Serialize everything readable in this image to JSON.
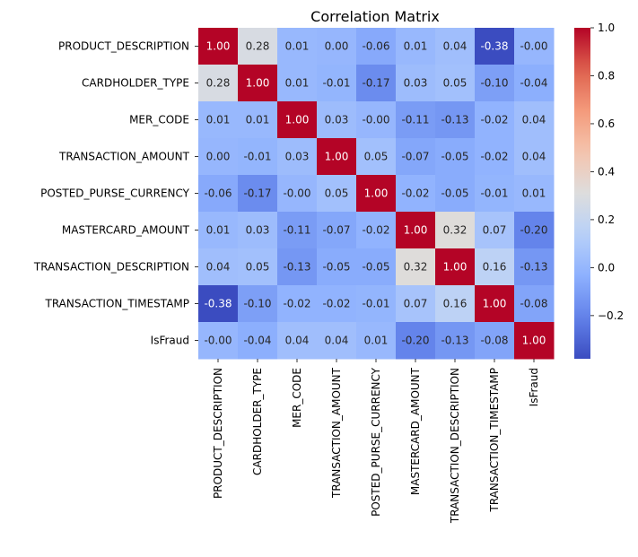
{
  "chart_data": {
    "type": "heatmap",
    "title": "Correlation Matrix",
    "xlabel": "",
    "ylabel": "",
    "rows": [
      "PRODUCT_DESCRIPTION",
      "CARDHOLDER_TYPE",
      "MER_CODE",
      "TRANSACTION_AMOUNT",
      "POSTED_PURSE_CURRENCY",
      "MASTERCARD_AMOUNT",
      "TRANSACTION_DESCRIPTION",
      "TRANSACTION_TIMESTAMP",
      "IsFraud"
    ],
    "columns": [
      "PRODUCT_DESCRIPTION",
      "CARDHOLDER_TYPE",
      "MER_CODE",
      "TRANSACTION_AMOUNT",
      "POSTED_PURSE_CURRENCY",
      "MASTERCARD_AMOUNT",
      "TRANSACTION_DESCRIPTION",
      "TRANSACTION_TIMESTAMP",
      "IsFraud"
    ],
    "values": [
      [
        1.0,
        0.28,
        0.01,
        0.0,
        -0.06,
        0.01,
        0.04,
        -0.38,
        -0.0
      ],
      [
        0.28,
        1.0,
        0.01,
        -0.01,
        -0.17,
        0.03,
        0.05,
        -0.1,
        -0.04
      ],
      [
        0.01,
        0.01,
        1.0,
        0.03,
        -0.0,
        -0.11,
        -0.13,
        -0.02,
        0.04
      ],
      [
        0.0,
        -0.01,
        0.03,
        1.0,
        0.05,
        -0.07,
        -0.05,
        -0.02,
        0.04
      ],
      [
        -0.06,
        -0.17,
        -0.0,
        0.05,
        1.0,
        -0.02,
        -0.05,
        -0.01,
        0.01
      ],
      [
        0.01,
        0.03,
        -0.11,
        -0.07,
        -0.02,
        1.0,
        0.32,
        0.07,
        -0.2
      ],
      [
        0.04,
        0.05,
        -0.13,
        -0.05,
        -0.05,
        0.32,
        1.0,
        0.16,
        -0.13
      ],
      [
        -0.38,
        -0.1,
        -0.02,
        -0.02,
        -0.01,
        0.07,
        0.16,
        1.0,
        -0.08
      ],
      [
        -0.0,
        -0.04,
        0.04,
        0.04,
        0.01,
        -0.2,
        -0.13,
        -0.08,
        1.0
      ]
    ],
    "annotation_labels": [
      [
        "1.00",
        "0.28",
        "0.01",
        "0.00",
        "-0.06",
        "0.01",
        "0.04",
        "-0.38",
        "-0.00"
      ],
      [
        "0.28",
        "1.00",
        "0.01",
        "-0.01",
        "-0.17",
        "0.03",
        "0.05",
        "-0.10",
        "-0.04"
      ],
      [
        "0.01",
        "0.01",
        "1.00",
        "0.03",
        "-0.00",
        "-0.11",
        "-0.13",
        "-0.02",
        "0.04"
      ],
      [
        "0.00",
        "-0.01",
        "0.03",
        "1.00",
        "0.05",
        "-0.07",
        "-0.05",
        "-0.02",
        "0.04"
      ],
      [
        "-0.06",
        "-0.17",
        "-0.00",
        "0.05",
        "1.00",
        "-0.02",
        "-0.05",
        "-0.01",
        "0.01"
      ],
      [
        "0.01",
        "0.03",
        "-0.11",
        "-0.07",
        "-0.02",
        "1.00",
        "0.32",
        "0.07",
        "-0.20"
      ],
      [
        "0.04",
        "0.05",
        "-0.13",
        "-0.05",
        "-0.05",
        "0.32",
        "1.00",
        "0.16",
        "-0.13"
      ],
      [
        "-0.38",
        "-0.10",
        "-0.02",
        "-0.02",
        "-0.01",
        "0.07",
        "0.16",
        "1.00",
        "-0.08"
      ],
      [
        "-0.00",
        "-0.04",
        "0.04",
        "0.04",
        "0.01",
        "-0.20",
        "-0.13",
        "-0.08",
        "1.00"
      ]
    ],
    "colormap": "coolwarm",
    "colorbar": {
      "vmin": -0.38,
      "vmax": 1.0,
      "ticks": [
        -0.2,
        0.0,
        0.2,
        0.4,
        0.6,
        0.8,
        1.0
      ],
      "tick_labels": [
        "−0.2",
        "0.0",
        "0.2",
        "0.4",
        "0.6",
        "0.8",
        "1.0"
      ],
      "position": "right"
    },
    "grid": false
  }
}
